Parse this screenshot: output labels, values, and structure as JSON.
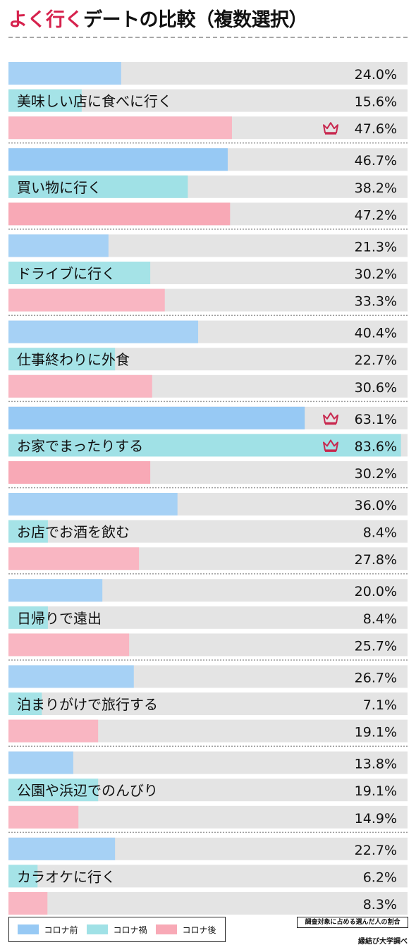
{
  "title": {
    "accent": "よく行く",
    "main": "デートの比較（複数選択）"
  },
  "colors": {
    "before": "#a6d1f5",
    "during": "#a5e3e7",
    "after": "#f9b6c2",
    "track": "#e4e4e4",
    "crown": "#c8284f"
  },
  "chart_data": {
    "type": "bar",
    "orientation": "horizontal",
    "value_unit": "%",
    "xlim": [
      0,
      85
    ],
    "series": [
      {
        "name": "コロナ前",
        "values": [
          24.0,
          46.7,
          21.3,
          40.4,
          63.1,
          36.0,
          20.0,
          26.7,
          13.8,
          22.7
        ]
      },
      {
        "name": "コロナ禍",
        "values": [
          15.6,
          38.2,
          30.2,
          22.7,
          83.6,
          8.4,
          8.4,
          7.1,
          19.1,
          6.2
        ]
      },
      {
        "name": "コロナ後",
        "values": [
          47.6,
          47.2,
          33.3,
          30.6,
          30.2,
          27.8,
          25.7,
          19.1,
          14.9,
          8.3
        ]
      }
    ],
    "categories": [
      "美味しい店に食べに行く",
      "買い物に行く",
      "ドライブに行く",
      "仕事終わりに外食",
      "お家でまったりする",
      "お店でお酒を飲む",
      "日帰りで遠出",
      "泊まりがけで旅行する",
      "公園や浜辺でのんびり",
      "カラオケに行く"
    ],
    "value_labels": [
      [
        "24.0%",
        "15.6%",
        "47.6%"
      ],
      [
        "46.7%",
        "38.2%",
        "47.2%"
      ],
      [
        "21.3%",
        "30.2%",
        "33.3%"
      ],
      [
        "40.4%",
        "22.7%",
        "30.6%"
      ],
      [
        "63.1%",
        "83.6%",
        "30.2%"
      ],
      [
        "36.0%",
        "8.4%",
        "27.8%"
      ],
      [
        "20.0%",
        "8.4%",
        "25.7%"
      ],
      [
        "26.7%",
        "7.1%",
        "19.1%"
      ],
      [
        "13.8%",
        "19.1%",
        "14.9%"
      ],
      [
        "22.7%",
        "6.2%",
        "8.3%"
      ]
    ],
    "highlighted_groups": [
      1,
      4
    ],
    "crown_marks": [
      [
        0,
        2
      ],
      [
        4,
        0
      ],
      [
        4,
        1
      ]
    ]
  },
  "legend": {
    "before": "コロナ前",
    "during": "コロナ禍",
    "after": "コロナ後"
  },
  "note": "調査対象に占める選んだ人の割合",
  "source": "縁結び大学調べ"
}
